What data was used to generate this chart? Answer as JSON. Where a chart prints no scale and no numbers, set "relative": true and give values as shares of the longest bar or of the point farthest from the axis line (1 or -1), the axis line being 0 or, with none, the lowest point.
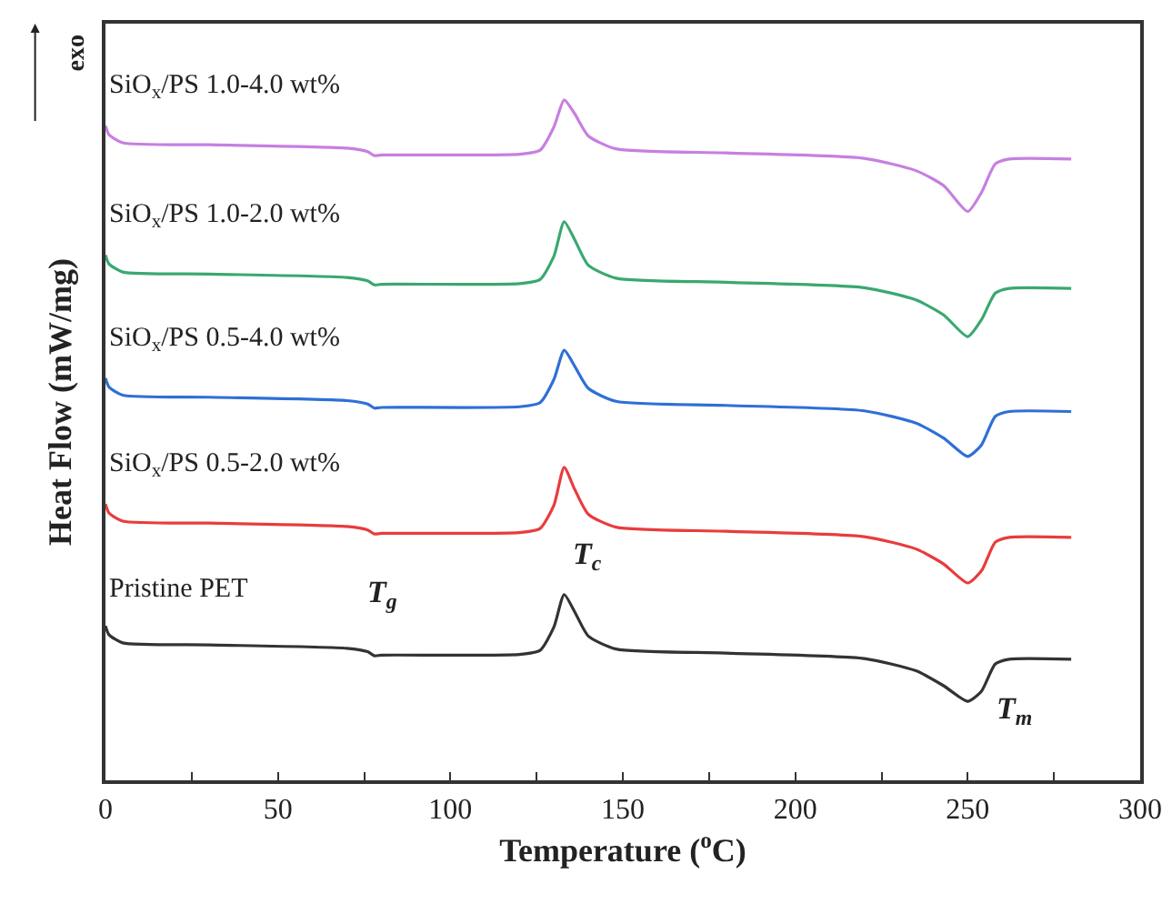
{
  "chart_data": {
    "type": "line",
    "relative": true,
    "xlabel": "Temperature ($^{o}$C)",
    "ylabel": "Heat Flow (mW/mg)",
    "xlim": [
      0,
      300
    ],
    "xticks": [
      0,
      {
        "value": 25,
        "label": null
      },
      50,
      {
        "value": 75,
        "label": null
      },
      100,
      {
        "value": 125,
        "label": null
      },
      150,
      {
        "value": 175,
        "label": null
      },
      200,
      {
        "value": 225,
        "label": null
      },
      250,
      {
        "value": 275,
        "label": null
      },
      300
    ],
    "grid": false,
    "legend": false,
    "marker": "none",
    "line_style": "solid",
    "x": [
      0,
      1,
      5,
      30,
      70,
      76,
      78,
      80,
      120,
      126,
      130,
      133,
      136,
      140,
      148,
      180,
      220,
      235,
      243,
      250,
      254,
      258,
      262,
      280
    ],
    "series": [
      {
        "name": "SiO$_{x}$/PS 1.0-4.0 wt%",
        "color": "#c77fe0",
        "values": [
          0.962,
          0.949,
          0.937,
          0.934,
          0.929,
          0.924,
          0.918,
          0.919,
          0.92,
          0.926,
          0.96,
          1.0,
          0.98,
          0.947,
          0.928,
          0.922,
          0.914,
          0.896,
          0.874,
          0.836,
          0.864,
          0.906,
          0.913,
          0.913
        ]
      },
      {
        "name": "SiO$_{x}$/PS 1.0-2.0 wt%",
        "color": "#3aa870",
        "values": [
          0.772,
          0.759,
          0.747,
          0.744,
          0.739,
          0.734,
          0.728,
          0.729,
          0.73,
          0.736,
          0.77,
          0.821,
          0.795,
          0.757,
          0.738,
          0.732,
          0.724,
          0.706,
          0.684,
          0.652,
          0.677,
          0.716,
          0.723,
          0.723
        ]
      },
      {
        "name": "SiO$_{x}$/PS 0.5-4.0 wt%",
        "color": "#2f6fd6",
        "values": [
          0.591,
          0.578,
          0.566,
          0.563,
          0.558,
          0.553,
          0.547,
          0.548,
          0.549,
          0.555,
          0.589,
          0.632,
          0.609,
          0.576,
          0.557,
          0.551,
          0.543,
          0.525,
          0.503,
          0.476,
          0.493,
          0.535,
          0.542,
          0.542
        ]
      },
      {
        "name": "SiO$_{x}$/PS 0.5-2.0 wt%",
        "color": "#e83c3c",
        "values": [
          0.406,
          0.393,
          0.381,
          0.378,
          0.373,
          0.368,
          0.362,
          0.363,
          0.364,
          0.37,
          0.404,
          0.46,
          0.428,
          0.391,
          0.372,
          0.366,
          0.358,
          0.34,
          0.318,
          0.29,
          0.308,
          0.35,
          0.357,
          0.357
        ]
      },
      {
        "name": "Pristine PET",
        "color": "#333333",
        "values": [
          0.227,
          0.214,
          0.202,
          0.199,
          0.194,
          0.189,
          0.183,
          0.184,
          0.185,
          0.191,
          0.225,
          0.273,
          0.248,
          0.212,
          0.193,
          0.187,
          0.179,
          0.161,
          0.139,
          0.116,
          0.131,
          0.171,
          0.178,
          0.178
        ]
      }
    ],
    "annotations": [
      "T$_{g}$",
      "T$_{c}$",
      "T$_{m}$",
      "exo"
    ]
  }
}
